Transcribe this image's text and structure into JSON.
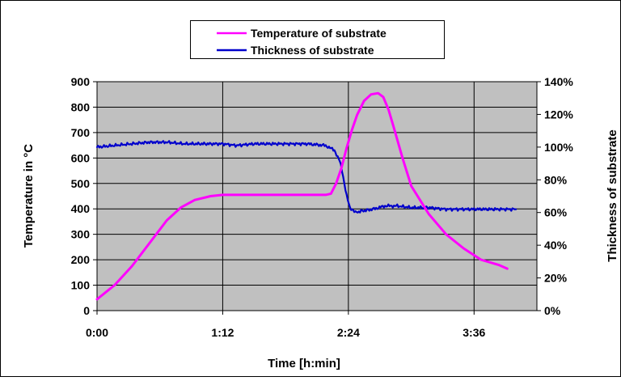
{
  "chart_data": {
    "type": "line",
    "title": "",
    "xlabel": "Time [h:min]",
    "ylabel": "Temperature in °C",
    "y2label": "Thickness of substrate",
    "x_ticks": [
      "0:00",
      "1:12",
      "2:24",
      "3:36"
    ],
    "x_tick_minutes": [
      0,
      72,
      144,
      216
    ],
    "xlim_minutes": [
      0,
      252
    ],
    "ylim": [
      0,
      900
    ],
    "y_ticks": [
      0,
      100,
      200,
      300,
      400,
      500,
      600,
      700,
      800,
      900
    ],
    "y2lim": [
      0,
      1.4
    ],
    "y2_ticks": [
      "0%",
      "20%",
      "40%",
      "60%",
      "80%",
      "100%",
      "120%",
      "140%"
    ],
    "grid": true,
    "plot_background": "#c0c0c0",
    "legend_position": "top",
    "series": [
      {
        "name": "Temperature of substrate",
        "axis": "left",
        "color": "#ff00ff",
        "x_minutes": [
          0,
          10,
          20,
          30,
          40,
          48,
          56,
          65,
          72,
          90,
          110,
          131,
          134,
          137,
          140,
          143,
          146,
          149,
          153,
          157,
          161,
          164,
          167,
          170,
          175,
          180,
          190,
          200,
          210,
          220,
          230,
          235
        ],
        "y": [
          45,
          100,
          175,
          265,
          355,
          405,
          435,
          450,
          455,
          455,
          455,
          455,
          460,
          500,
          560,
          640,
          710,
          770,
          825,
          850,
          855,
          840,
          790,
          720,
          600,
          490,
          380,
          300,
          245,
          200,
          180,
          165
        ]
      },
      {
        "name": "Thickness of substrate",
        "axis": "right",
        "color": "#0000cc",
        "x_minutes": [
          0,
          10,
          20,
          30,
          40,
          50,
          60,
          72,
          80,
          90,
          100,
          110,
          120,
          131,
          136,
          139,
          141,
          143,
          145,
          148,
          152,
          158,
          165,
          172,
          180,
          190,
          200,
          210,
          220,
          230,
          240
        ],
        "y": [
          1.0,
          1.01,
          1.02,
          1.03,
          1.03,
          1.02,
          1.02,
          1.02,
          1.01,
          1.02,
          1.02,
          1.02,
          1.02,
          1.01,
          0.98,
          0.92,
          0.82,
          0.7,
          0.63,
          0.6,
          0.61,
          0.62,
          0.64,
          0.64,
          0.63,
          0.63,
          0.62,
          0.62,
          0.62,
          0.62,
          0.62
        ]
      }
    ]
  }
}
